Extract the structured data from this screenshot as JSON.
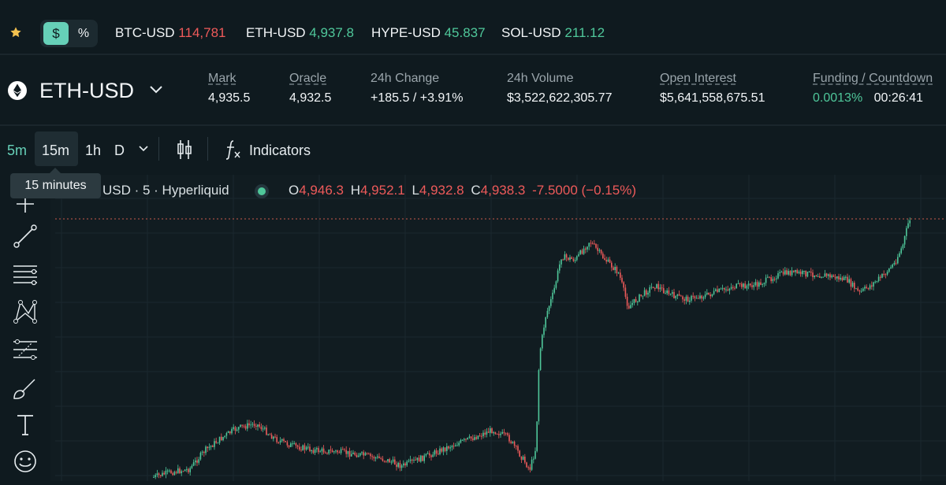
{
  "ticker": {
    "favorite_icon": "star-icon",
    "toggle": {
      "dollar_label": "$",
      "percent_label": "%"
    },
    "items": [
      {
        "symbol": "BTC-USD",
        "price": "114,781",
        "trend": "down"
      },
      {
        "symbol": "ETH-USD",
        "price": "4,937.8",
        "trend": "up"
      },
      {
        "symbol": "HYPE-USD",
        "price": "45.837",
        "trend": "up"
      },
      {
        "symbol": "SOL-USD",
        "price": "211.12",
        "trend": "up"
      }
    ]
  },
  "market": {
    "pair": "ETH-USD",
    "pair_icon": "ethereum-icon",
    "stats": {
      "mark": {
        "label": "Mark",
        "value": "4,935.5"
      },
      "oracle": {
        "label": "Oracle",
        "value": "4,932.5"
      },
      "change": {
        "label": "24h Change",
        "value": "+185.5 / +3.91%"
      },
      "volume": {
        "label": "24h Volume",
        "value": "$3,522,622,305.77"
      },
      "open_interest": {
        "label": "Open Interest",
        "value": "$5,641,558,675.51"
      },
      "funding": {
        "label": "Funding / Countdown",
        "rate": "0.0013%",
        "countdown": "00:26:41"
      }
    }
  },
  "toolbar": {
    "timeframes": [
      "5m",
      "15m",
      "1h",
      "D"
    ],
    "tooltip": "15 minutes",
    "indicators_label": "Indicators"
  },
  "chart": {
    "legend": {
      "title": "USD · 5 · Hyperliquid",
      "open_label": "O",
      "open": "4,946.3",
      "high_label": "H",
      "high": "4,952.1",
      "low_label": "L",
      "low": "4,932.8",
      "close_label": "C",
      "close": "4,938.3",
      "change": "-7.5000 (−0.15%)"
    },
    "colors": {
      "up": "#4fc79a",
      "down": "#ee5a5a",
      "accent": "#66d0b8"
    },
    "left_tools": [
      "crosshair-icon",
      "trend-line-icon",
      "horizontal-lines-icon",
      "pattern-icon",
      "fib-icon",
      "brush-icon",
      "text-icon",
      "emoji-icon"
    ]
  }
}
